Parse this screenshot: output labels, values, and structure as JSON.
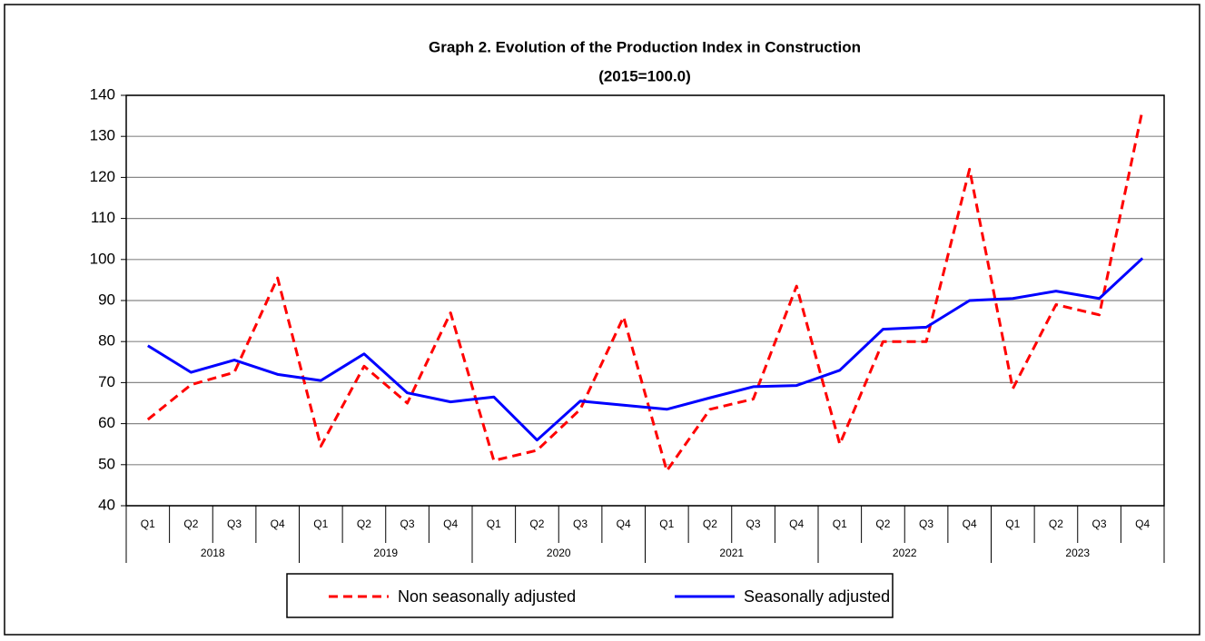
{
  "chart_data": {
    "type": "line",
    "title": "Graph 2. Evolution of the Production Index in Construction",
    "subtitle": "(2015=100.0)",
    "categories": [
      "Q1",
      "Q2",
      "Q3",
      "Q4",
      "Q1",
      "Q2",
      "Q3",
      "Q4",
      "Q1",
      "Q2",
      "Q3",
      "Q4",
      "Q1",
      "Q2",
      "Q3",
      "Q4",
      "Q1",
      "Q2",
      "Q3",
      "Q4",
      "Q1",
      "Q2",
      "Q3",
      "Q4"
    ],
    "years": [
      "2018",
      "2019",
      "2020",
      "2021",
      "2022",
      "2023"
    ],
    "series": [
      {
        "name": "Non seasonally adjusted",
        "color": "#ff0000",
        "dashed": true,
        "values": [
          61,
          69.5,
          72.5,
          95.5,
          54.5,
          74,
          65,
          87,
          51,
          53.5,
          63.5,
          86,
          48.5,
          63.5,
          66,
          93.5,
          55,
          80,
          80,
          122,
          68.5,
          89,
          86.5,
          136.5
        ]
      },
      {
        "name": "Seasonally adjusted",
        "color": "#0000ff",
        "dashed": false,
        "values": [
          79,
          72.5,
          75.5,
          72,
          70.5,
          77,
          67.5,
          65.3,
          66.5,
          56,
          65.5,
          64.5,
          63.5,
          66.3,
          69,
          69.3,
          73,
          83,
          83.5,
          90,
          90.5,
          92.3,
          90.5,
          100.3
        ]
      }
    ],
    "ylim": [
      40,
      140
    ],
    "yticks": [
      40,
      50,
      60,
      70,
      80,
      90,
      100,
      110,
      120,
      130,
      140
    ],
    "grid": true
  }
}
